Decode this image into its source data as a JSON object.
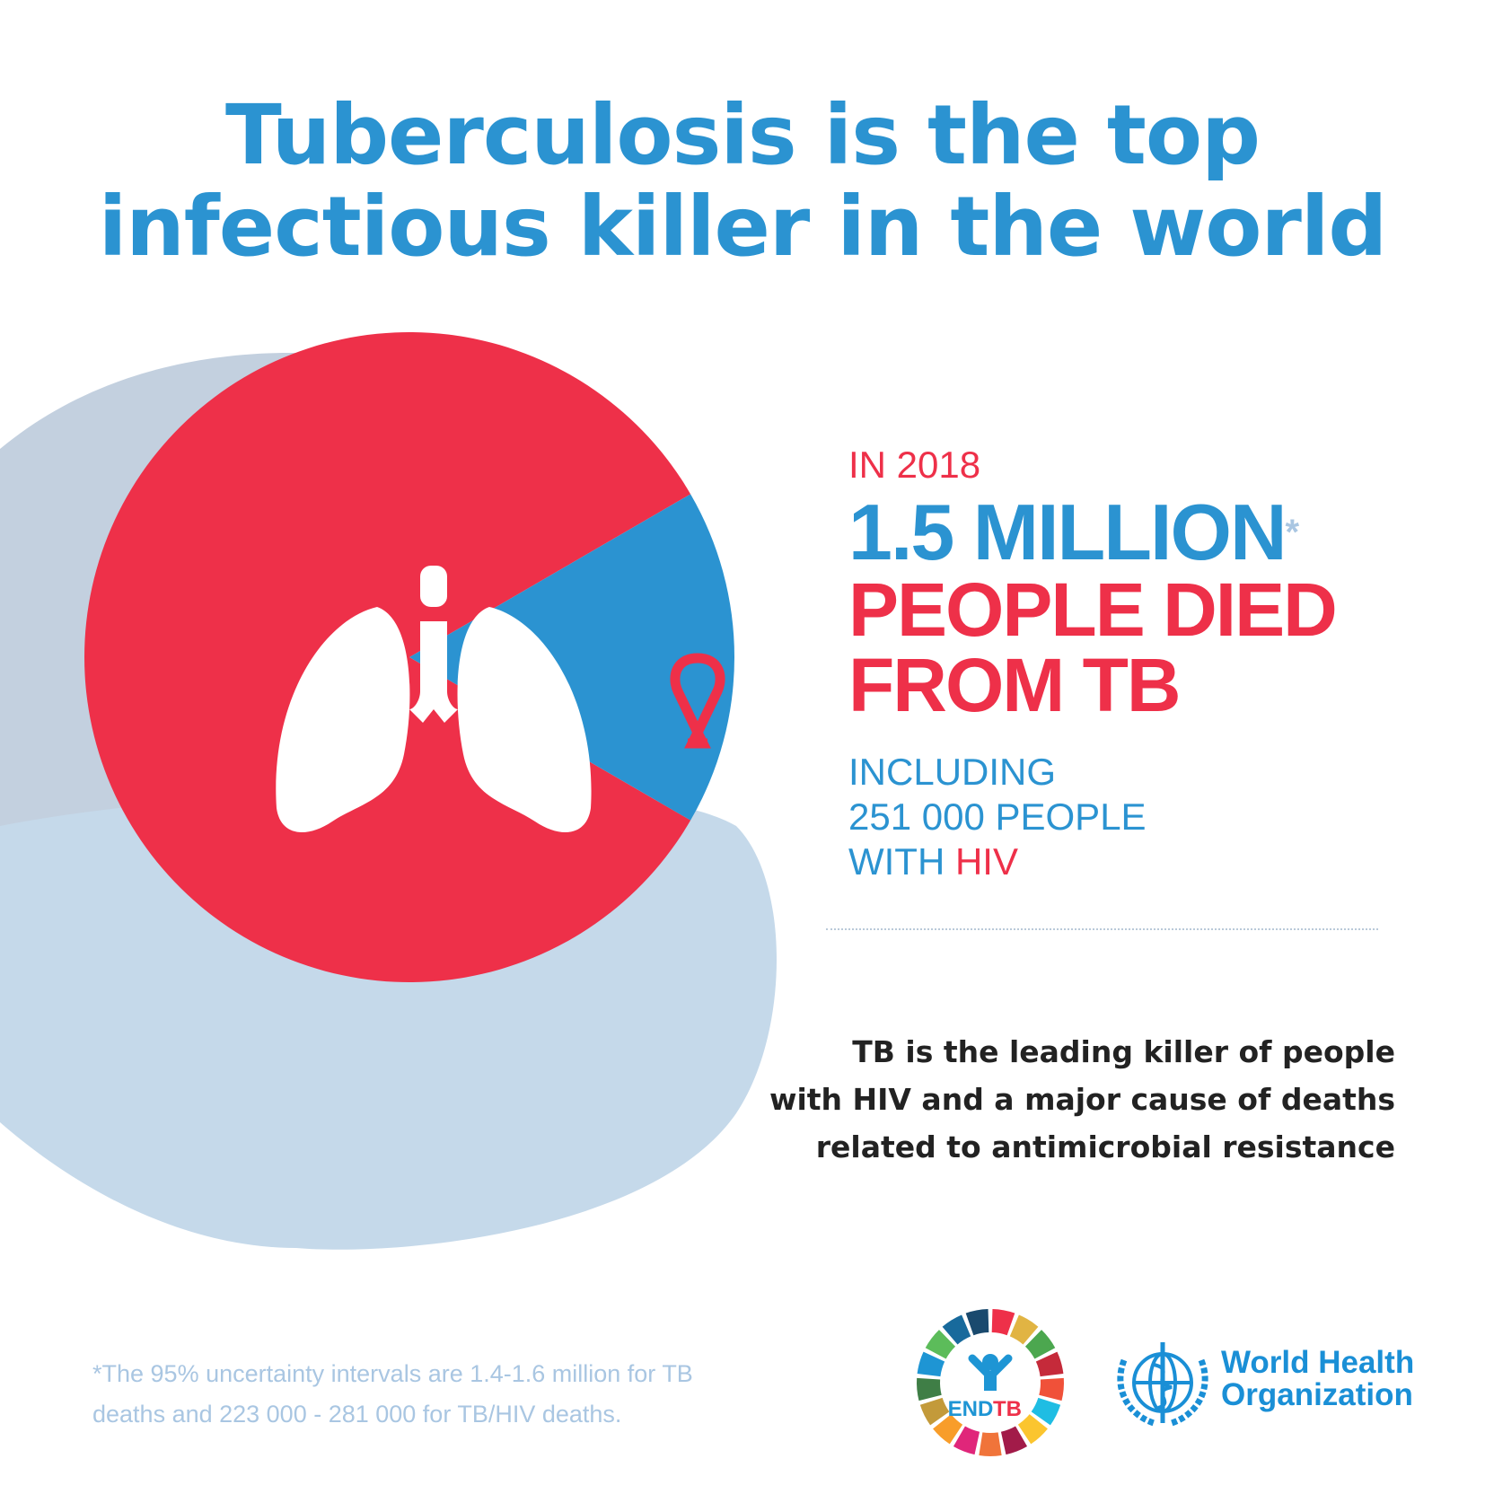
{
  "title": {
    "line1": "Tuberculosis is the top",
    "line2": "infectious killer in the world"
  },
  "stats": {
    "year": "IN 2018",
    "headline_number": "1.5 MILLION",
    "asterisk": "*",
    "line2": "PEOPLE DIED",
    "line3": "FROM TB",
    "including": "INCLUDING",
    "hiv_count": "251 000 PEOPLE",
    "with": "WITH ",
    "hiv": "HIV"
  },
  "pie": {
    "total_deaths": 1500000,
    "hiv_deaths": 251000,
    "colors": {
      "tb": "#ee3049",
      "hiv": "#2b93d1"
    },
    "icons": [
      "lungs-icon",
      "red-ribbon-icon"
    ]
  },
  "lead": {
    "line1": "TB is the leading killer of people",
    "line2": "with HIV and a major cause of deaths",
    "line3": "related to antimicrobial resistance"
  },
  "footnote": {
    "line1": "*The 95% uncertainty intervals are 1.4-1.6 million for TB",
    "line2": "deaths and 223 000 - 281 000 for TB/HIV deaths."
  },
  "logos": {
    "endtb": {
      "end": "END",
      "tb": "TB"
    },
    "who": {
      "line1": "World Health",
      "line2": "Organization"
    }
  }
}
